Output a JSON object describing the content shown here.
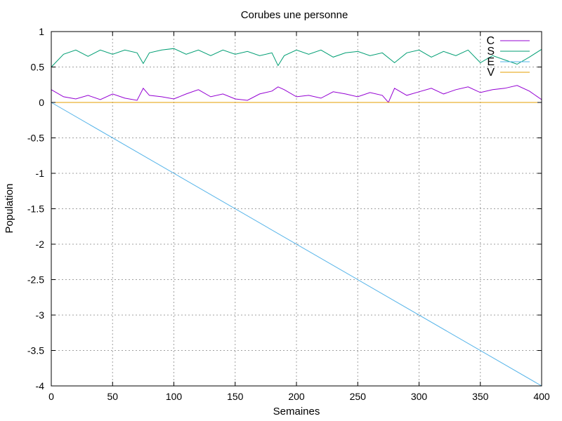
{
  "chart_data": {
    "type": "line",
    "title": "Corubes une personne",
    "xlabel": "Semaines",
    "ylabel": "Population",
    "xlim": [
      0,
      400
    ],
    "ylim": [
      -4,
      1
    ],
    "grid": true,
    "legend_position": "top-right",
    "x_ticks": [
      0,
      50,
      100,
      150,
      200,
      250,
      300,
      350,
      400
    ],
    "x_tick_labels": [
      "0",
      "50",
      "100",
      "150",
      "200",
      "250",
      "300",
      "350",
      "400"
    ],
    "y_ticks": [
      1,
      0.5,
      0,
      -0.5,
      -1,
      -1.5,
      -2,
      -2.5,
      -3,
      -3.5,
      -4
    ],
    "y_tick_labels": [
      "1",
      "0.5",
      "0",
      "-0.5",
      "-1",
      "-1.5",
      "-2",
      "-2.5",
      "-3",
      "-3.5",
      "-4"
    ],
    "series": [
      {
        "name": "C",
        "color": "#9400d3",
        "x": [
          0,
          10,
          20,
          30,
          40,
          50,
          60,
          70,
          75,
          80,
          90,
          100,
          110,
          120,
          130,
          140,
          150,
          160,
          170,
          180,
          185,
          190,
          200,
          210,
          220,
          230,
          240,
          250,
          260,
          270,
          275,
          280,
          290,
          300,
          310,
          320,
          330,
          340,
          350,
          360,
          370,
          380,
          390,
          400
        ],
        "y": [
          0.18,
          0.08,
          0.05,
          0.1,
          0.04,
          0.12,
          0.06,
          0.03,
          0.2,
          0.1,
          0.08,
          0.05,
          0.12,
          0.18,
          0.08,
          0.12,
          0.05,
          0.03,
          0.12,
          0.16,
          0.22,
          0.18,
          0.08,
          0.1,
          0.06,
          0.15,
          0.12,
          0.08,
          0.14,
          0.1,
          0.0,
          0.2,
          0.1,
          0.15,
          0.2,
          0.12,
          0.18,
          0.22,
          0.14,
          0.18,
          0.2,
          0.24,
          0.16,
          0.04
        ]
      },
      {
        "name": "S",
        "color": "#009e73",
        "x": [
          0,
          10,
          20,
          30,
          40,
          50,
          60,
          70,
          75,
          80,
          90,
          100,
          110,
          120,
          130,
          140,
          150,
          160,
          170,
          180,
          185,
          190,
          200,
          210,
          220,
          230,
          240,
          250,
          260,
          270,
          280,
          290,
          300,
          310,
          320,
          330,
          340,
          350,
          360,
          370,
          380,
          390,
          400
        ],
        "y": [
          0.5,
          0.68,
          0.74,
          0.65,
          0.74,
          0.68,
          0.74,
          0.7,
          0.55,
          0.7,
          0.74,
          0.76,
          0.68,
          0.74,
          0.66,
          0.74,
          0.68,
          0.72,
          0.66,
          0.7,
          0.52,
          0.66,
          0.74,
          0.68,
          0.74,
          0.64,
          0.7,
          0.72,
          0.66,
          0.7,
          0.56,
          0.7,
          0.74,
          0.64,
          0.72,
          0.66,
          0.74,
          0.56,
          0.66,
          0.6,
          0.54,
          0.64,
          0.75
        ]
      },
      {
        "name": "E",
        "color": "#56b4e9",
        "x": [
          0,
          400
        ],
        "y": [
          0,
          -4
        ]
      },
      {
        "name": "V",
        "color": "#e69f00",
        "x": [
          0,
          400
        ],
        "y": [
          0,
          0
        ]
      }
    ]
  }
}
